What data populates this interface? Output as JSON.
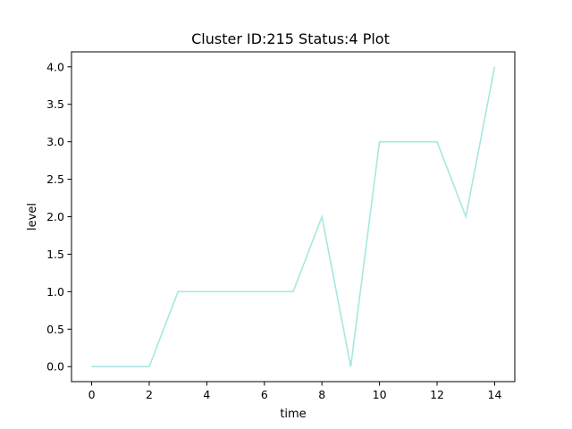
{
  "chart_data": {
    "type": "line",
    "title": "Cluster ID:215 Status:4 Plot",
    "xlabel": "time",
    "ylabel": "level",
    "x": [
      0,
      1,
      2,
      3,
      4,
      5,
      6,
      7,
      8,
      9,
      10,
      11,
      12,
      13,
      14
    ],
    "series": [
      {
        "values": [
          0,
          0,
          0,
          1,
          1,
          1,
          1,
          1,
          2,
          0,
          3,
          3,
          3,
          2,
          4
        ],
        "color": "#a6e8e0"
      }
    ],
    "xlim": [
      -0.7,
      14.7
    ],
    "ylim": [
      -0.2,
      4.2
    ],
    "xticks": [
      "0",
      "2",
      "4",
      "6",
      "8",
      "10",
      "12",
      "14"
    ],
    "yticks": [
      "0.0",
      "0.5",
      "1.0",
      "1.5",
      "2.0",
      "2.5",
      "3.0",
      "3.5",
      "4.0"
    ],
    "grid": false,
    "legend": "none"
  }
}
